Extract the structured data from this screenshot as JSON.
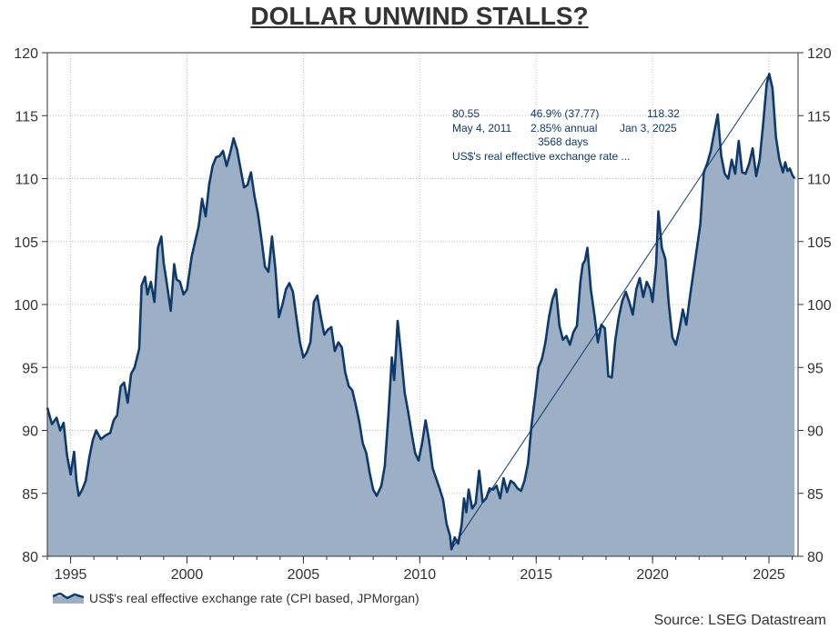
{
  "chart_data": {
    "type": "area",
    "title": "DOLLAR UNWIND STALLS?",
    "ylim": [
      80,
      120
    ],
    "xlim": [
      1994.0,
      2026.25
    ],
    "y_ticks": [
      "80",
      "85",
      "90",
      "95",
      "100",
      "105",
      "110",
      "115",
      "120"
    ],
    "x_ticks": [
      "1995",
      "2000",
      "2005",
      "2010",
      "2015",
      "2020",
      "2025"
    ],
    "series": [
      {
        "name": "US$'s real effective exchange rate (CPI based, JPMorgan)",
        "points": [
          [
            1994.0,
            91.8
          ],
          [
            1994.2,
            90.5
          ],
          [
            1994.4,
            91.0
          ],
          [
            1994.55,
            90.0
          ],
          [
            1994.7,
            90.6
          ],
          [
            1994.85,
            88.0
          ],
          [
            1995.0,
            86.5
          ],
          [
            1995.15,
            88.3
          ],
          [
            1995.25,
            86.0
          ],
          [
            1995.35,
            84.8
          ],
          [
            1995.5,
            85.3
          ],
          [
            1995.65,
            86.0
          ],
          [
            1995.8,
            87.8
          ],
          [
            1995.95,
            89.2
          ],
          [
            1996.1,
            90.0
          ],
          [
            1996.3,
            89.3
          ],
          [
            1996.5,
            89.6
          ],
          [
            1996.7,
            89.8
          ],
          [
            1996.85,
            90.8
          ],
          [
            1997.0,
            91.2
          ],
          [
            1997.15,
            93.5
          ],
          [
            1997.3,
            93.8
          ],
          [
            1997.45,
            92.2
          ],
          [
            1997.6,
            94.5
          ],
          [
            1997.75,
            95.0
          ],
          [
            1997.95,
            96.5
          ],
          [
            1998.05,
            101.5
          ],
          [
            1998.2,
            102.2
          ],
          [
            1998.3,
            100.8
          ],
          [
            1998.45,
            101.8
          ],
          [
            1998.6,
            100.2
          ],
          [
            1998.75,
            104.5
          ],
          [
            1998.9,
            105.4
          ],
          [
            1999.0,
            103.3
          ],
          [
            1999.15,
            101.5
          ],
          [
            1999.3,
            99.5
          ],
          [
            1999.45,
            103.2
          ],
          [
            1999.55,
            102.0
          ],
          [
            1999.7,
            101.8
          ],
          [
            1999.85,
            100.8
          ],
          [
            2000.0,
            101.2
          ],
          [
            2000.2,
            103.8
          ],
          [
            2000.35,
            105.0
          ],
          [
            2000.5,
            106.2
          ],
          [
            2000.65,
            108.4
          ],
          [
            2000.8,
            107.0
          ],
          [
            2000.95,
            109.5
          ],
          [
            2001.1,
            111.0
          ],
          [
            2001.25,
            111.7
          ],
          [
            2001.4,
            111.8
          ],
          [
            2001.55,
            112.2
          ],
          [
            2001.7,
            111.0
          ],
          [
            2001.85,
            112.0
          ],
          [
            2002.0,
            113.2
          ],
          [
            2002.15,
            112.3
          ],
          [
            2002.3,
            110.8
          ],
          [
            2002.45,
            109.3
          ],
          [
            2002.6,
            109.5
          ],
          [
            2002.75,
            110.5
          ],
          [
            2002.9,
            108.6
          ],
          [
            2003.05,
            107.2
          ],
          [
            2003.2,
            105.2
          ],
          [
            2003.35,
            103.0
          ],
          [
            2003.5,
            102.6
          ],
          [
            2003.65,
            105.4
          ],
          [
            2003.8,
            102.8
          ],
          [
            2003.95,
            99.0
          ],
          [
            2004.1,
            100.0
          ],
          [
            2004.25,
            101.2
          ],
          [
            2004.4,
            101.7
          ],
          [
            2004.55,
            101.0
          ],
          [
            2004.7,
            99.0
          ],
          [
            2004.85,
            97.0
          ],
          [
            2005.0,
            95.8
          ],
          [
            2005.15,
            96.2
          ],
          [
            2005.3,
            97.0
          ],
          [
            2005.45,
            100.2
          ],
          [
            2005.6,
            100.7
          ],
          [
            2005.75,
            99.0
          ],
          [
            2005.9,
            97.6
          ],
          [
            2006.05,
            98.0
          ],
          [
            2006.2,
            98.2
          ],
          [
            2006.35,
            96.3
          ],
          [
            2006.5,
            97.0
          ],
          [
            2006.65,
            96.6
          ],
          [
            2006.8,
            94.6
          ],
          [
            2006.95,
            93.5
          ],
          [
            2007.1,
            93.2
          ],
          [
            2007.25,
            92.0
          ],
          [
            2007.4,
            90.7
          ],
          [
            2007.55,
            89.0
          ],
          [
            2007.7,
            88.2
          ],
          [
            2007.85,
            86.6
          ],
          [
            2008.0,
            85.3
          ],
          [
            2008.15,
            84.8
          ],
          [
            2008.35,
            85.6
          ],
          [
            2008.5,
            87.2
          ],
          [
            2008.65,
            91.2
          ],
          [
            2008.8,
            95.8
          ],
          [
            2008.9,
            94.0
          ],
          [
            2009.05,
            98.7
          ],
          [
            2009.2,
            96.0
          ],
          [
            2009.35,
            93.0
          ],
          [
            2009.5,
            91.5
          ],
          [
            2009.65,
            89.8
          ],
          [
            2009.8,
            88.2
          ],
          [
            2009.95,
            87.6
          ],
          [
            2010.1,
            89.0
          ],
          [
            2010.25,
            90.8
          ],
          [
            2010.4,
            89.2
          ],
          [
            2010.55,
            87.0
          ],
          [
            2010.7,
            86.2
          ],
          [
            2010.85,
            85.4
          ],
          [
            2011.0,
            84.5
          ],
          [
            2011.15,
            82.6
          ],
          [
            2011.3,
            81.6
          ],
          [
            2011.36,
            80.55
          ],
          [
            2011.5,
            81.5
          ],
          [
            2011.65,
            81.0
          ],
          [
            2011.8,
            82.5
          ],
          [
            2011.9,
            84.6
          ],
          [
            2012.0,
            83.5
          ],
          [
            2012.1,
            85.3
          ],
          [
            2012.25,
            83.8
          ],
          [
            2012.4,
            84.2
          ],
          [
            2012.55,
            86.8
          ],
          [
            2012.7,
            84.3
          ],
          [
            2012.85,
            84.6
          ],
          [
            2013.0,
            85.4
          ],
          [
            2013.15,
            85.3
          ],
          [
            2013.3,
            85.6
          ],
          [
            2013.45,
            84.6
          ],
          [
            2013.6,
            86.2
          ],
          [
            2013.75,
            85.1
          ],
          [
            2013.9,
            86.0
          ],
          [
            2014.05,
            85.8
          ],
          [
            2014.2,
            85.4
          ],
          [
            2014.35,
            85.2
          ],
          [
            2014.5,
            86.0
          ],
          [
            2014.65,
            87.4
          ],
          [
            2014.8,
            90.4
          ],
          [
            2014.95,
            92.6
          ],
          [
            2015.1,
            95.0
          ],
          [
            2015.25,
            95.7
          ],
          [
            2015.4,
            97.0
          ],
          [
            2015.55,
            99.0
          ],
          [
            2015.7,
            100.4
          ],
          [
            2015.85,
            101.2
          ],
          [
            2016.0,
            98.3
          ],
          [
            2016.15,
            97.2
          ],
          [
            2016.3,
            97.5
          ],
          [
            2016.45,
            96.8
          ],
          [
            2016.6,
            97.8
          ],
          [
            2016.75,
            98.3
          ],
          [
            2016.9,
            101.8
          ],
          [
            2017.0,
            103.2
          ],
          [
            2017.1,
            103.5
          ],
          [
            2017.2,
            104.5
          ],
          [
            2017.35,
            101.2
          ],
          [
            2017.5,
            99.2
          ],
          [
            2017.65,
            97.0
          ],
          [
            2017.8,
            98.4
          ],
          [
            2017.95,
            98.1
          ],
          [
            2018.1,
            94.3
          ],
          [
            2018.25,
            94.2
          ],
          [
            2018.4,
            97.2
          ],
          [
            2018.55,
            99.0
          ],
          [
            2018.7,
            100.3
          ],
          [
            2018.85,
            101.0
          ],
          [
            2019.0,
            100.2
          ],
          [
            2019.15,
            99.2
          ],
          [
            2019.3,
            101.2
          ],
          [
            2019.45,
            102.1
          ],
          [
            2019.6,
            100.6
          ],
          [
            2019.75,
            101.8
          ],
          [
            2019.9,
            101.2
          ],
          [
            2020.0,
            100.2
          ],
          [
            2020.15,
            103.2
          ],
          [
            2020.25,
            107.4
          ],
          [
            2020.4,
            104.5
          ],
          [
            2020.55,
            103.6
          ],
          [
            2020.7,
            100.0
          ],
          [
            2020.85,
            97.4
          ],
          [
            2021.0,
            96.8
          ],
          [
            2021.15,
            98.0
          ],
          [
            2021.3,
            99.6
          ],
          [
            2021.45,
            98.4
          ],
          [
            2021.6,
            100.5
          ],
          [
            2021.75,
            102.5
          ],
          [
            2021.9,
            104.4
          ],
          [
            2022.05,
            106.4
          ],
          [
            2022.2,
            110.5
          ],
          [
            2022.35,
            111.2
          ],
          [
            2022.5,
            112.2
          ],
          [
            2022.65,
            113.7
          ],
          [
            2022.8,
            115.1
          ],
          [
            2022.95,
            111.8
          ],
          [
            2023.1,
            110.4
          ],
          [
            2023.25,
            110.0
          ],
          [
            2023.4,
            111.5
          ],
          [
            2023.55,
            110.4
          ],
          [
            2023.7,
            113.0
          ],
          [
            2023.85,
            110.5
          ],
          [
            2024.0,
            110.4
          ],
          [
            2024.15,
            111.2
          ],
          [
            2024.3,
            112.4
          ],
          [
            2024.45,
            110.2
          ],
          [
            2024.6,
            111.5
          ],
          [
            2024.75,
            114.3
          ],
          [
            2024.9,
            117.5
          ],
          [
            2025.01,
            118.32
          ],
          [
            2025.15,
            117.2
          ],
          [
            2025.3,
            113.3
          ],
          [
            2025.45,
            111.5
          ],
          [
            2025.6,
            110.5
          ],
          [
            2025.7,
            111.3
          ],
          [
            2025.8,
            110.6
          ],
          [
            2025.9,
            110.8
          ],
          [
            2026.0,
            110.3
          ],
          [
            2026.1,
            110.0
          ]
        ]
      }
    ],
    "trend_line": {
      "start": [
        2011.36,
        80.55
      ],
      "end": [
        2025.01,
        118.32
      ]
    },
    "annotation": {
      "start_value": "80.55",
      "start_date": "May 4, 2011",
      "change": "46.9% (37.77)",
      "annual": "2.85% annual",
      "days": "3568 days",
      "end_value": "118.32",
      "end_date": "Jan 3, 2025",
      "series_label": "US$'s real effective exchange rate ..."
    },
    "legend": {
      "label": "US$'s real effective exchange rate (CPI based, JPMorgan)",
      "position": "bottom-left"
    },
    "source": "Source: LSEG Datastream",
    "colors": {
      "line": "#0e3a6b",
      "fill": "#9dafc4",
      "grid": "#bdbdbd",
      "axis": "#333333",
      "annotation": "#0e3a6b"
    }
  }
}
